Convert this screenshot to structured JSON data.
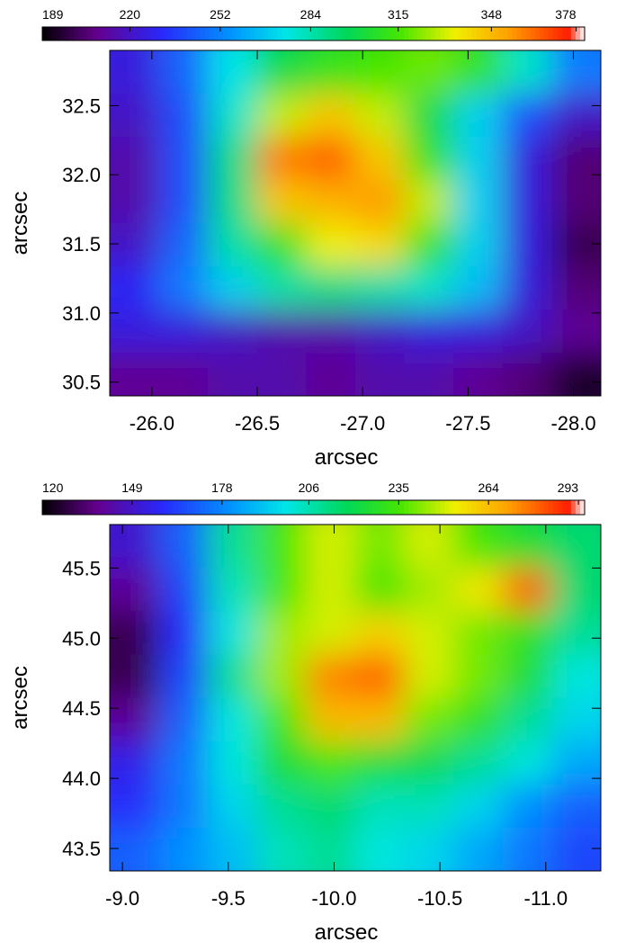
{
  "chart_data": [
    {
      "type": "heatmap",
      "xlabel": "arcsec",
      "ylabel": "arcsec",
      "xlim": [
        -25.8,
        -28.13
      ],
      "ylim": [
        30.4,
        32.9
      ],
      "xticks": [
        {
          "value": -26,
          "label": "-26.0"
        },
        -26.5,
        {
          "value": -27,
          "label": "-27.0"
        },
        -27.5,
        {
          "value": -28,
          "label": "-28.0"
        }
      ],
      "yticks": [
        30.5,
        {
          "value": 31,
          "label": "31.0"
        },
        31.5,
        {
          "value": 32,
          "label": "32.0"
        },
        32.5
      ],
      "colorbar": {
        "lim": [
          189,
          381
        ],
        "ticks": [
          189,
          220,
          252,
          284,
          315,
          348,
          378
        ]
      },
      "z": [
        [
          225,
          245,
          275,
          300,
          310,
          315,
          320,
          310,
          280,
          250
        ],
        [
          220,
          240,
          280,
          330,
          345,
          330,
          300,
          270,
          240,
          220
        ],
        [
          215,
          240,
          290,
          360,
          365,
          345,
          310,
          270,
          225,
          205
        ],
        [
          215,
          240,
          290,
          345,
          350,
          355,
          330,
          270,
          225,
          205
        ],
        [
          220,
          245,
          285,
          310,
          335,
          340,
          310,
          270,
          225,
          200
        ],
        [
          230,
          250,
          270,
          285,
          290,
          285,
          280,
          265,
          225,
          205
        ],
        [
          225,
          225,
          220,
          215,
          215,
          220,
          225,
          225,
          220,
          210
        ],
        [
          210,
          210,
          215,
          215,
          210,
          215,
          215,
          210,
          205,
          195
        ]
      ]
    },
    {
      "type": "heatmap",
      "xlabel": "arcsec",
      "ylabel": "arcsec",
      "xlim": [
        -8.94,
        -11.26
      ],
      "ylim": [
        43.34,
        45.81
      ],
      "xticks": [
        {
          "value": -9,
          "label": "-9.0"
        },
        -9.5,
        {
          "value": -10,
          "label": "-10.0"
        },
        -10.5,
        {
          "value": -11,
          "label": "-11.0"
        }
      ],
      "yticks": [
        43.5,
        {
          "value": 44,
          "label": "44.0"
        },
        44.5,
        {
          "value": 45,
          "label": "45.0"
        },
        45.5
      ],
      "colorbar": {
        "lim": [
          120,
          295
        ],
        "ticks": [
          120,
          149,
          178,
          206,
          235,
          264,
          293
        ]
      },
      "z": [
        [
          150,
          170,
          210,
          235,
          250,
          240,
          250,
          235,
          225,
          215
        ],
        [
          140,
          165,
          205,
          235,
          250,
          235,
          245,
          255,
          280,
          215
        ],
        [
          130,
          160,
          200,
          245,
          250,
          260,
          250,
          240,
          230,
          210
        ],
        [
          130,
          165,
          210,
          245,
          275,
          280,
          250,
          240,
          225,
          200
        ],
        [
          140,
          170,
          200,
          235,
          265,
          265,
          240,
          230,
          210,
          195
        ],
        [
          155,
          175,
          200,
          225,
          235,
          225,
          220,
          210,
          200,
          185
        ],
        [
          160,
          175,
          195,
          210,
          215,
          205,
          205,
          195,
          180,
          170
        ],
        [
          170,
          180,
          190,
          205,
          210,
          200,
          195,
          185,
          175,
          165
        ]
      ]
    }
  ]
}
